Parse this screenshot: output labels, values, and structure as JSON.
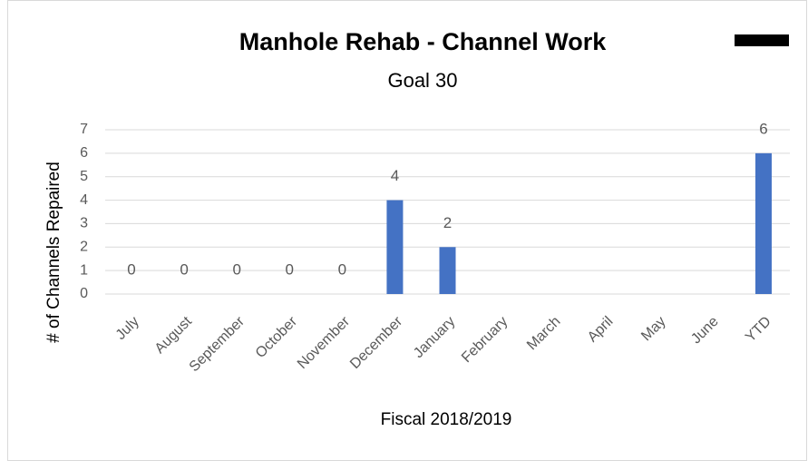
{
  "chart_data": {
    "type": "bar",
    "title": "Manhole Rehab - Channel Work",
    "subtitle": "Goal 30",
    "x_label": "Fiscal 2018/2019",
    "y_label": "# of Channels Repaired",
    "categories": [
      "July",
      "August",
      "September",
      "October",
      "November",
      "December",
      "January",
      "February",
      "March",
      "April",
      "May",
      "June",
      "YTD"
    ],
    "values": [
      0,
      0,
      0,
      0,
      0,
      4,
      2,
      null,
      null,
      null,
      null,
      null,
      6
    ],
    "color": "#4472c4",
    "ylim": [
      0,
      7
    ],
    "yticks": [
      0,
      1,
      2,
      3,
      4,
      5,
      6,
      7
    ],
    "grid": true
  }
}
